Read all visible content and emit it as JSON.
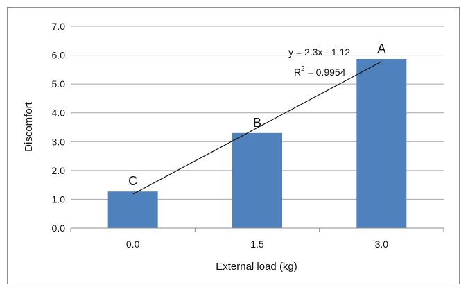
{
  "chart_data": {
    "type": "bar",
    "categories": [
      "0.0",
      "1.5",
      "3.0"
    ],
    "values": [
      1.27,
      3.3,
      5.87
    ],
    "bar_labels": [
      "C",
      "B",
      "A"
    ],
    "xlabel": "External load (kg)",
    "ylabel": "Discomfort",
    "ylim": [
      0,
      7
    ],
    "yticks": [
      "0.0",
      "1.0",
      "2.0",
      "3.0",
      "4.0",
      "5.0",
      "6.0",
      "7.0"
    ],
    "grid": true,
    "bar_color": "#4f81bd",
    "trendline": {
      "type": "linear",
      "slope": 2.3,
      "intercept": -1.12,
      "equation": "y = 2.3x - 1.12",
      "r2_prefix": "R",
      "r2_exp": "2",
      "r2_value": " = 0.9954"
    }
  }
}
